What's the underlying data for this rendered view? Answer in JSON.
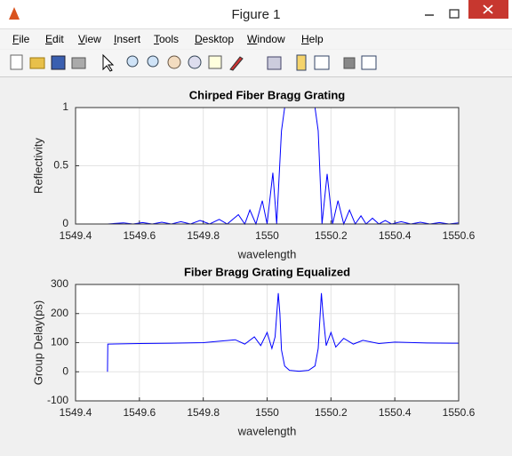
{
  "window": {
    "title": "Figure 1"
  },
  "menu": [
    "File",
    "Edit",
    "View",
    "Insert",
    "Tools",
    "Desktop",
    "Window",
    "Help"
  ],
  "chart_data": [
    {
      "type": "line",
      "title": "Chirped Fiber Bragg Grating",
      "xlabel": "wavelength",
      "ylabel": "Reflectivity",
      "x": [
        1549.5,
        1549.55,
        1549.58,
        1549.61,
        1549.64,
        1549.67,
        1549.7,
        1549.73,
        1549.76,
        1549.79,
        1549.82,
        1549.85,
        1549.875,
        1549.91,
        1549.93,
        1549.946,
        1549.965,
        1549.985,
        1550.0,
        1550.018,
        1550.03,
        1550.045,
        1550.055,
        1550.15,
        1550.16,
        1550.172,
        1550.188,
        1550.205,
        1550.222,
        1550.24,
        1550.258,
        1550.276,
        1550.294,
        1550.31,
        1550.33,
        1550.35,
        1550.37,
        1550.39,
        1550.42,
        1550.45,
        1550.48,
        1550.51,
        1550.54,
        1550.57,
        1550.6
      ],
      "values": [
        0,
        0.01,
        0,
        0.012,
        0,
        0.015,
        0,
        0.02,
        0,
        0.03,
        0,
        0.04,
        0,
        0.08,
        0,
        0.12,
        0,
        0.2,
        0,
        0.44,
        0,
        0.8,
        1,
        1,
        0.8,
        0,
        0.43,
        0,
        0.2,
        0,
        0.12,
        0,
        0.07,
        0,
        0.05,
        0,
        0.03,
        0,
        0.02,
        0,
        0.015,
        0,
        0.012,
        0,
        0.01
      ],
      "color": "#0000ff",
      "grid": true,
      "xlim": [
        1549.4,
        1550.6
      ],
      "xticks": [
        1549.4,
        1549.6,
        1549.8,
        1550,
        1550.2,
        1550.4,
        1550.6
      ],
      "ylim": [
        0,
        1
      ],
      "yticks": [
        0,
        0.5,
        1
      ]
    },
    {
      "type": "line",
      "title": "Fiber Bragg Grating Equalized",
      "xlabel": "wavelength",
      "ylabel": "Group Delay(ps)",
      "x": [
        1549.5,
        1549.501,
        1549.6,
        1549.7,
        1549.8,
        1549.85,
        1549.9,
        1549.93,
        1549.96,
        1549.98,
        1550.0,
        1550.015,
        1550.025,
        1550.035,
        1550.04,
        1550.045,
        1550.055,
        1550.07,
        1550.1,
        1550.13,
        1550.15,
        1550.16,
        1550.17,
        1550.175,
        1550.185,
        1550.2,
        1550.215,
        1550.24,
        1550.27,
        1550.3,
        1550.35,
        1550.4,
        1550.5,
        1550.6
      ],
      "values": [
        0,
        95,
        97,
        98,
        100,
        105,
        110,
        95,
        120,
        90,
        135,
        80,
        120,
        270,
        200,
        75,
        20,
        5,
        2,
        5,
        20,
        80,
        270,
        200,
        90,
        135,
        85,
        115,
        95,
        108,
        97,
        102,
        99,
        98
      ],
      "color": "#0000ff",
      "grid": true,
      "xlim": [
        1549.4,
        1550.6
      ],
      "xticks": [
        1549.4,
        1549.6,
        1549.8,
        1550,
        1550.2,
        1550.4,
        1550.6
      ],
      "ylim": [
        -100,
        300
      ],
      "yticks": [
        -100,
        0,
        100,
        200,
        300
      ]
    }
  ]
}
